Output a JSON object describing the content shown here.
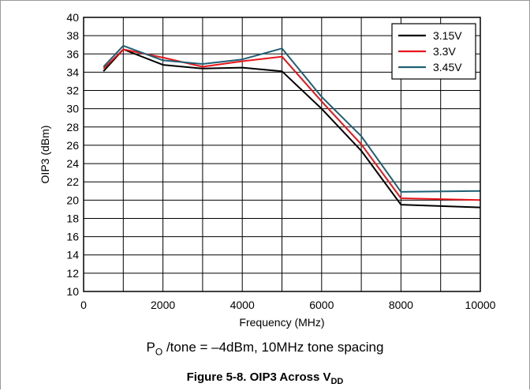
{
  "chart_data": {
    "type": "line",
    "xlabel": "Frequency (MHz)",
    "ylabel": "OIP3 (dBm)",
    "xlim": [
      0,
      10000
    ],
    "ylim": [
      10,
      40
    ],
    "xticks": [
      0,
      2000,
      4000,
      6000,
      8000,
      10000
    ],
    "yticks": [
      10,
      12,
      14,
      16,
      18,
      20,
      22,
      24,
      26,
      28,
      30,
      32,
      34,
      36,
      38,
      40
    ],
    "grid": true,
    "legend_position": "top-right",
    "series": [
      {
        "name": "3.15V",
        "color": "#000000",
        "x": [
          500,
          1000,
          2000,
          3000,
          4000,
          5000,
          6000,
          7000,
          8000,
          10000
        ],
        "y": [
          34.1,
          36.5,
          34.8,
          34.4,
          34.5,
          34.1,
          30.0,
          25.4,
          19.5,
          19.2
        ]
      },
      {
        "name": "3.3V",
        "color": "#e8161b",
        "x": [
          500,
          1000,
          2000,
          3000,
          4000,
          5000,
          6000,
          7000,
          8000,
          10000
        ],
        "y": [
          34.4,
          36.5,
          35.6,
          34.6,
          35.2,
          35.7,
          30.8,
          26.1,
          20.2,
          20.0
        ]
      },
      {
        "name": "3.45V",
        "color": "#1f5f73",
        "x": [
          500,
          1000,
          2000,
          3000,
          4000,
          5000,
          6000,
          7000,
          8000,
          10000
        ],
        "y": [
          34.6,
          36.9,
          35.3,
          34.9,
          35.4,
          36.6,
          31.3,
          27.0,
          20.9,
          21.0
        ]
      }
    ]
  },
  "note": {
    "prefix": "P",
    "sub": "O",
    "text": " /tone = –4dBm, 10MHz tone spacing"
  },
  "caption": {
    "text": "Figure 5-8. OIP3 Across V",
    "sub": "DD"
  }
}
